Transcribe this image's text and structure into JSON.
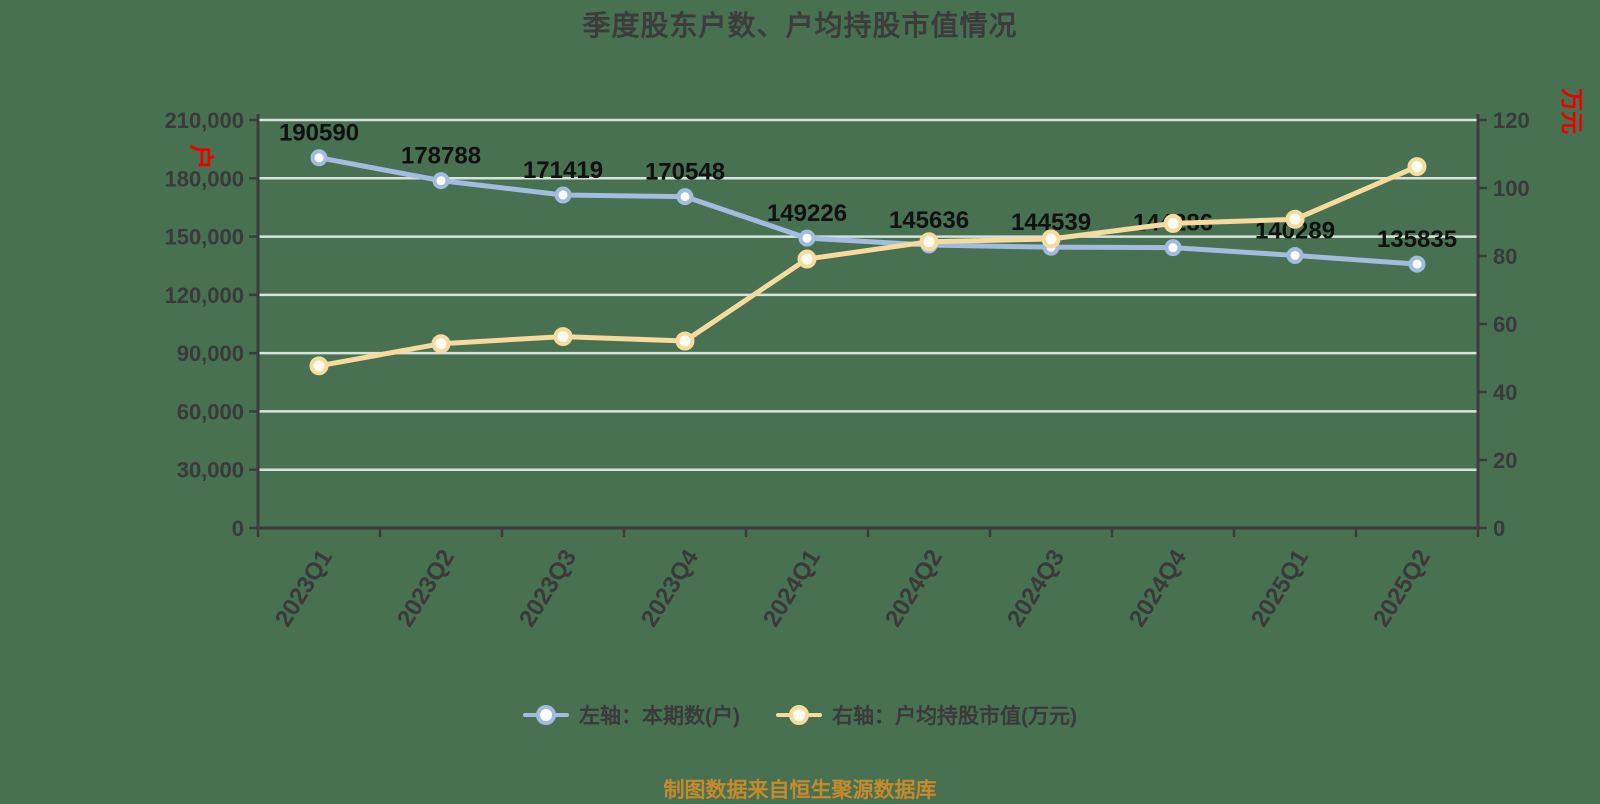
{
  "title": "季度股东户数、户均持股市值情况",
  "colors": {
    "background": "#477150",
    "axis_line": "#3C3C3C",
    "tick_text": "#3A3A3A",
    "gridline": "rgba(255,255,255,0.8)",
    "data_label": "#111111",
    "axis_unit_red": "#EE0000",
    "series_blue": "#A2BCE0",
    "series_yellow": "#F6DA9E",
    "marker_fill_blue": "#FFFFFF",
    "marker_fill_yellow": "#FFFDF2",
    "footer_orange": "#C68A2C"
  },
  "chart_data": {
    "type": "line",
    "title": "季度股东户数、户均持股市值情况",
    "categories": [
      "2023Q1",
      "2023Q2",
      "2023Q3",
      "2023Q4",
      "2024Q1",
      "2024Q2",
      "2024Q3",
      "2024Q4",
      "2025Q1",
      "2025Q2"
    ],
    "series": [
      {
        "name": "左轴：本期数(户)",
        "yaxis": "left",
        "color": "#A2BCE0",
        "marker_fill": "#FFFFFF",
        "data_labels": true,
        "values": [
          190590,
          178788,
          171419,
          170548,
          149226,
          145636,
          144539,
          144286,
          140289,
          135835
        ]
      },
      {
        "name": "右轴：户均持股市值(万元)",
        "yaxis": "right",
        "color": "#F6DA9E",
        "marker_fill": "#FFFDF2",
        "data_labels": false,
        "values": [
          47.7,
          54.2,
          56.3,
          55.0,
          79.1,
          84.2,
          85.0,
          89.6,
          90.8,
          106.3
        ]
      }
    ],
    "left_axis": {
      "unit": "户",
      "min": 0,
      "max": 210000,
      "step": 30000,
      "tick_labels": [
        "0",
        "30,000",
        "60,000",
        "90,000",
        "120,000",
        "150,000",
        "180,000",
        "210,000"
      ]
    },
    "right_axis": {
      "unit": "万元",
      "min": 0,
      "max": 120,
      "step": 20,
      "tick_labels": [
        "0",
        "20",
        "40",
        "60",
        "80",
        "100",
        "120"
      ]
    },
    "grid": true,
    "legend_position": "bottom"
  },
  "legend": {
    "items": [
      {
        "label": "左轴：本期数(户)"
      },
      {
        "label": "右轴：户均持股市值(万元)"
      }
    ]
  },
  "footer": {
    "text": "制图数据来自恒生聚源数据库"
  }
}
